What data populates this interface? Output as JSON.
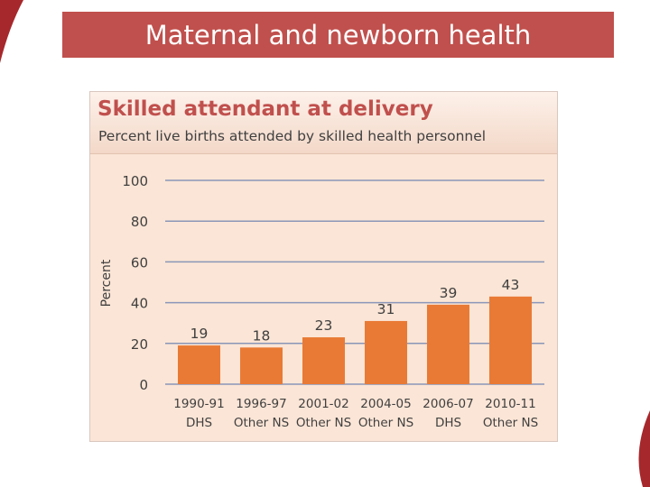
{
  "slide": {
    "title": "Maternal and newborn health",
    "accent_color": "#c0504d"
  },
  "chart_data": {
    "type": "bar",
    "title": "Skilled attendant at delivery",
    "subtitle": "Percent live births attended by skilled health personnel",
    "ylabel": "Percent",
    "xlabel": "",
    "categories": [
      [
        "1990-91",
        "DHS"
      ],
      [
        "1996-97",
        "Other NS"
      ],
      [
        "2001-02",
        "Other NS"
      ],
      [
        "2004-05",
        "Other NS"
      ],
      [
        "2006-07",
        "DHS"
      ],
      [
        "2010-11",
        "Other NS"
      ]
    ],
    "values": [
      19,
      18,
      23,
      31,
      39,
      43
    ],
    "ylim": [
      0,
      100
    ],
    "yticks": [
      0,
      20,
      40,
      60,
      80,
      100
    ],
    "grid": true,
    "bar_color": "#e97a35",
    "legend": "none"
  }
}
